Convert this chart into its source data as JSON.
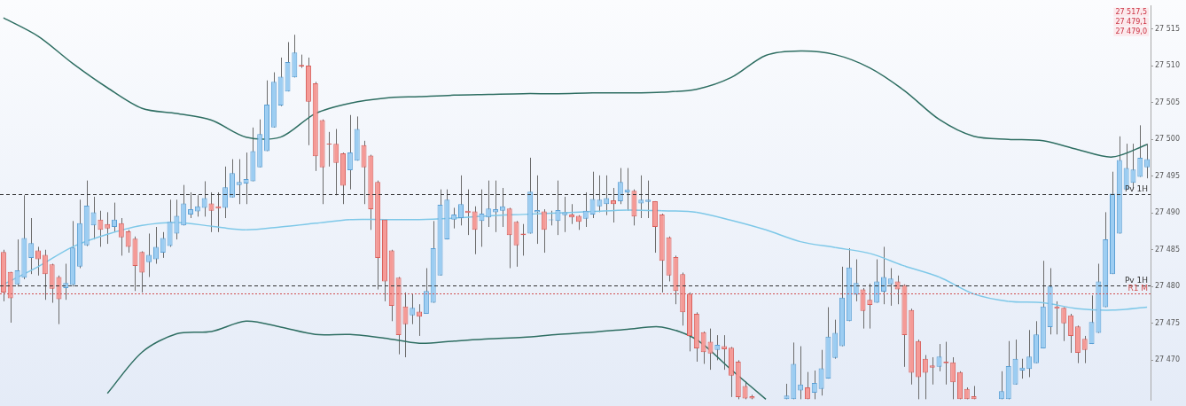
{
  "chart_data": {
    "type": "candlestick",
    "categories": [
      null,
      null,
      null,
      null,
      null,
      null,
      null,
      null,
      null,
      null,
      null,
      null,
      null,
      null,
      null,
      null,
      null,
      null,
      null,
      null,
      null,
      null,
      null,
      null,
      null,
      null,
      null,
      null,
      null,
      null,
      null,
      null,
      null,
      null,
      null,
      null,
      null,
      null,
      null,
      null,
      null,
      null,
      null,
      null,
      null,
      null,
      null,
      null,
      null,
      null,
      null,
      null,
      null,
      null,
      null,
      null,
      null,
      null,
      null,
      null,
      null,
      null,
      null,
      null,
      null,
      null,
      null,
      null,
      null,
      null,
      null,
      null,
      null,
      null,
      null,
      null,
      null,
      null,
      null,
      null,
      null,
      null,
      null,
      null,
      null,
      null,
      null,
      null,
      null,
      null,
      null,
      null,
      null,
      null,
      null,
      null,
      null,
      null,
      null,
      null,
      null,
      null,
      null,
      null,
      null,
      null,
      null,
      null,
      null,
      null,
      null,
      null,
      null,
      null,
      null,
      null,
      null,
      null,
      null,
      null,
      null,
      null,
      null,
      null,
      null,
      null,
      null,
      null,
      null,
      null,
      null,
      null,
      null,
      null,
      null,
      null,
      null,
      null,
      null,
      null,
      null,
      null,
      null,
      null,
      null,
      null,
      null,
      null,
      null,
      null,
      null,
      null,
      null,
      null,
      null,
      null,
      null,
      null,
      null,
      null,
      null,
      null,
      null,
      null,
      null,
      null
    ],
    "ohlc": [
      [
        27484.7,
        27485.0,
        27478.0,
        27479.2
      ],
      [
        27482.0,
        27482.0,
        27475.1,
        27478.4
      ],
      [
        27480.3,
        27486.4,
        27480.0,
        27482.2
      ],
      [
        27481.2,
        27492.4,
        27481.0,
        27486.6
      ],
      [
        27483.9,
        27489.3,
        27481.7,
        27485.9
      ],
      [
        27484.9,
        27485.4,
        27481.5,
        27483.7
      ],
      [
        27484.3,
        27485.0,
        27478.2,
        27481.7
      ],
      [
        27483.0,
        27483.1,
        27477.8,
        27479.7
      ],
      [
        27481.3,
        27481.5,
        27474.9,
        27478.3
      ],
      [
        27479.8,
        27483.1,
        27478.2,
        27480.5
      ],
      [
        27480.2,
        27488.9,
        27480.0,
        27485.3
      ],
      [
        27482.7,
        27491.8,
        27482.5,
        27488.6
      ],
      [
        27485.6,
        27494.4,
        27485.5,
        27491.0
      ],
      [
        27488.3,
        27492.2,
        27486.4,
        27490.1
      ],
      [
        27489.1,
        27490.3,
        27485.4,
        27487.7
      ],
      [
        27488.5,
        27490.1,
        27485.8,
        27487.9
      ],
      [
        27488.1,
        27491.4,
        27487.4,
        27489.1
      ],
      [
        27488.6,
        27489.3,
        27484.2,
        27486.7
      ],
      [
        27487.5,
        27487.7,
        27484.6,
        27485.4
      ],
      [
        27486.5,
        27486.8,
        27479.4,
        27482.8
      ],
      [
        27484.7,
        27484.8,
        27479.2,
        27481.9
      ],
      [
        27483.3,
        27487.2,
        27481.3,
        27484.3
      ],
      [
        27483.7,
        27488.1,
        27483.1,
        27485.4
      ],
      [
        27484.6,
        27487.4,
        27483.9,
        27486.6
      ],
      [
        27485.5,
        27491.8,
        27485.4,
        27488.8
      ],
      [
        27487.2,
        27491.8,
        27486.4,
        27489.6
      ],
      [
        27488.3,
        27493.8,
        27488.3,
        27491.3
      ],
      [
        27489.8,
        27492.8,
        27489.3,
        27490.5
      ],
      [
        27490.2,
        27492.4,
        27489.5,
        27490.9
      ],
      [
        27490.7,
        27494.3,
        27489.5,
        27492.0
      ],
      [
        27491.3,
        27492.8,
        27487.4,
        27490.3
      ],
      [
        27490.9,
        27492.8,
        27487.4,
        27490.6
      ],
      [
        27490.7,
        27496.3,
        27489.3,
        27493.5
      ],
      [
        27492.1,
        27497.3,
        27492.1,
        27495.4
      ],
      [
        27493.8,
        27497.3,
        27491.2,
        27494.2
      ],
      [
        27494.0,
        27498.2,
        27491.2,
        27494.6
      ],
      [
        27494.3,
        27501.6,
        27494.3,
        27498.4
      ],
      [
        27496.2,
        27502.7,
        27496.2,
        27500.7
      ],
      [
        27498.4,
        27508.0,
        27498.4,
        27504.7
      ],
      [
        27501.6,
        27509.1,
        27501.6,
        27507.8
      ],
      [
        27504.6,
        27511.1,
        27504.5,
        27508.5
      ],
      [
        27506.5,
        27513.2,
        27506.5,
        27510.5
      ],
      [
        27508.4,
        27514.2,
        27508.4,
        27511.8
      ],
      [
        27510.1,
        27511.5,
        27509.7,
        27509.9
      ],
      [
        27510.0,
        27511.1,
        27499.2,
        27505.1
      ],
      [
        27507.6,
        27507.8,
        27495.7,
        27497.7
      ],
      [
        27502.6,
        27502.7,
        27491.2,
        27496.2
      ],
      [
        27499.4,
        27501.0,
        27496.3,
        27499.3
      ],
      [
        27499.4,
        27501.4,
        27492.4,
        27496.8
      ],
      [
        27498.1,
        27498.2,
        27491.2,
        27493.7
      ],
      [
        27495.8,
        27503.3,
        27493.2,
        27498.2
      ],
      [
        27497.1,
        27503.1,
        27497.1,
        27501.4
      ],
      [
        27499.2,
        27499.8,
        27491.2,
        27496.2
      ],
      [
        27497.8,
        27497.9,
        27487.7,
        27490.5
      ],
      [
        27494.2,
        27494.4,
        27479.6,
        27483.9
      ],
      [
        27489.1,
        27489.1,
        27478.0,
        27480.7
      ],
      [
        27484.9,
        27485.0,
        27475.3,
        27477.4
      ],
      [
        27481.2,
        27481.3,
        27470.8,
        27473.4
      ],
      [
        27477.3,
        27479.2,
        27470.4,
        27474.9
      ],
      [
        27476.1,
        27479.0,
        27474.9,
        27477.1
      ],
      [
        27476.6,
        27477.6,
        27473.3,
        27475.9
      ],
      [
        27476.3,
        27482.5,
        27476.3,
        27479.4
      ],
      [
        27477.8,
        27488.9,
        27477.8,
        27485.2
      ],
      [
        27481.5,
        27493.2,
        27481.5,
        27491.1
      ],
      [
        27486.4,
        27493.2,
        27486.4,
        27491.8
      ],
      [
        27489.1,
        27490.7,
        27487.9,
        27489.8
      ],
      [
        27489.3,
        27495.1,
        27488.3,
        27491.2
      ],
      [
        27490.3,
        27493.2,
        27487.0,
        27490.0
      ],
      [
        27490.2,
        27490.9,
        27484.4,
        27487.7
      ],
      [
        27488.9,
        27493.2,
        27485.4,
        27489.9
      ],
      [
        27489.4,
        27494.4,
        27488.1,
        27490.6
      ],
      [
        27490.1,
        27494.4,
        27487.4,
        27490.5
      ],
      [
        27490.3,
        27493.4,
        27488.1,
        27490.9
      ],
      [
        27490.6,
        27490.7,
        27482.5,
        27487.0
      ],
      [
        27488.8,
        27488.9,
        27482.7,
        27485.6
      ],
      [
        27487.2,
        27488.5,
        27484.2,
        27487.0
      ],
      [
        27487.2,
        27497.5,
        27487.2,
        27492.9
      ],
      [
        27490.1,
        27495.1,
        27485.8,
        27490.4
      ],
      [
        27490.2,
        27490.5,
        27484.6,
        27487.7
      ],
      [
        27489.0,
        27490.3,
        27488.3,
        27489.1
      ],
      [
        27488.9,
        27494.4,
        27487.0,
        27490.4
      ],
      [
        27489.7,
        27492.2,
        27487.4,
        27490.1
      ],
      [
        27489.8,
        27491.2,
        27488.5,
        27489.4
      ],
      [
        27489.6,
        27489.7,
        27487.7,
        27488.8
      ],
      [
        27489.2,
        27492.8,
        27488.1,
        27490.3
      ],
      [
        27489.8,
        27495.6,
        27489.3,
        27491.9
      ],
      [
        27490.9,
        27495.1,
        27490.1,
        27491.8
      ],
      [
        27491.2,
        27495.1,
        27489.7,
        27492.0
      ],
      [
        27491.7,
        27493.4,
        27488.7,
        27491.2
      ],
      [
        27491.6,
        27496.1,
        27491.2,
        27494.2
      ],
      [
        27492.8,
        27496.1,
        27490.3,
        27493.2
      ],
      [
        27493.0,
        27493.2,
        27488.3,
        27489.5
      ],
      [
        27491.3,
        27495.1,
        27489.3,
        27491.8
      ],
      [
        27491.5,
        27494.4,
        27489.3,
        27491.8
      ],
      [
        27491.6,
        27491.6,
        27484.6,
        27488.1
      ],
      [
        27489.8,
        27489.9,
        27479.2,
        27483.5
      ],
      [
        27486.7,
        27486.8,
        27480.7,
        27481.5
      ],
      [
        27484.0,
        27484.2,
        27477.6,
        27479.4
      ],
      [
        27481.7,
        27481.9,
        27474.7,
        27476.5
      ],
      [
        27479.0,
        27479.2,
        27471.2,
        27473.3
      ],
      [
        27476.3,
        27476.5,
        27469.8,
        27471.6
      ],
      [
        27473.8,
        27473.9,
        27469.5,
        27471.1
      ],
      [
        27472.5,
        27474.3,
        27468.7,
        27470.9
      ],
      [
        27471.4,
        27473.4,
        27470.0,
        27472.1
      ],
      [
        27471.9,
        27473.4,
        27468.7,
        27471.5
      ],
      [
        27471.7,
        27471.8,
        27465.0,
        27467.9
      ],
      [
        27469.8,
        27470.0,
        27464.7,
        27465.0
      ],
      [
        27466.5,
        27467.1,
        27464.7,
        27464.8
      ],
      [
        27465.1,
        27465.3,
        27464.7,
        27464.8
      ],
      null,
      null,
      null,
      null,
      [
        27464.7,
        27466.8,
        27464.7,
        27465.2
      ],
      [
        27464.7,
        27472.4,
        27464.7,
        27469.5
      ],
      [
        27465.9,
        27471.9,
        27464.7,
        27466.7
      ],
      [
        27466.3,
        27468.4,
        27464.7,
        27464.7
      ],
      [
        27465.6,
        27468.6,
        27464.7,
        27466.9
      ],
      [
        27466.1,
        27471.4,
        27465.2,
        27468.9
      ],
      [
        27467.5,
        27477.2,
        27467.5,
        27473.2
      ],
      [
        27470.3,
        27475.5,
        27470.2,
        27473.7
      ],
      [
        27471.9,
        27482.7,
        27471.9,
        27478.5
      ],
      [
        27475.3,
        27485.2,
        27475.3,
        27482.6
      ],
      [
        27478.9,
        27483.7,
        27478.0,
        27480.5
      ],
      [
        27479.6,
        27479.8,
        27474.3,
        27476.7
      ],
      [
        27478.2,
        27480.4,
        27474.3,
        27477.5
      ],
      [
        27477.8,
        27483.7,
        27477.8,
        27480.7
      ],
      [
        27479.3,
        27485.4,
        27477.6,
        27481.3
      ],
      [
        27480.3,
        27482.5,
        27477.4,
        27481.1
      ],
      [
        27480.7,
        27481.5,
        27477.6,
        27479.6
      ],
      [
        27480.2,
        27480.3,
        27469.1,
        27473.4
      ],
      [
        27476.8,
        27477.0,
        27466.7,
        27468.3
      ],
      [
        27472.6,
        27472.8,
        27464.7,
        27467.7
      ],
      [
        27470.2,
        27470.7,
        27464.7,
        27468.3
      ],
      [
        27469.3,
        27470.4,
        27466.7,
        27469.0
      ],
      [
        27469.1,
        27472.2,
        27468.5,
        27470.5
      ],
      [
        27469.8,
        27472.5,
        27466.7,
        27469.6
      ],
      [
        27469.7,
        27470.4,
        27464.7,
        27467.0
      ],
      [
        27468.4,
        27468.5,
        27464.7,
        27464.7
      ],
      [
        27466.1,
        27466.3,
        27464.7,
        27464.7
      ],
      [
        27465.1,
        27466.5,
        27464.7,
        27464.7
      ],
      null,
      null,
      null,
      [
        27464.7,
        27468.5,
        27464.7,
        27465.8
      ],
      [
        27464.7,
        27472.6,
        27464.7,
        27469.2
      ],
      [
        27466.7,
        27472.8,
        27466.7,
        27470.2
      ],
      [
        27468.6,
        27470.2,
        27467.5,
        27469.0
      ],
      [
        27468.8,
        27474.1,
        27467.7,
        27470.5
      ],
      [
        27469.6,
        27475.3,
        27469.6,
        27473.5
      ],
      [
        27471.6,
        27483.5,
        27471.6,
        27477.3
      ],
      [
        27474.5,
        27482.5,
        27473.5,
        27480.0
      ],
      [
        27477.3,
        27478.0,
        27473.5,
        27477.0
      ],
      [
        27477.1,
        27477.2,
        27472.6,
        27475.0
      ],
      [
        27476.1,
        27476.3,
        27471.0,
        27473.3
      ],
      [
        27474.6,
        27474.7,
        27469.6,
        27471.0
      ],
      [
        27472.9,
        27473.3,
        27469.6,
        27471.4
      ],
      [
        27472.2,
        27478.8,
        27472.2,
        27475.2
      ],
      [
        27473.7,
        27483.1,
        27473.7,
        27480.7
      ],
      [
        27477.2,
        27490.1,
        27477.2,
        27486.4
      ],
      [
        27481.7,
        27495.6,
        27481.7,
        27492.6
      ],
      [
        27487.2,
        27500.4,
        27487.2,
        27497.2
      ],
      [
        27493.2,
        27499.4,
        27493.2,
        27496.1
      ],
      [
        27494.1,
        27499.4,
        27493.2,
        27495.9
      ],
      [
        27494.9,
        27501.9,
        27494.9,
        27497.5
      ],
      [
        27496.2,
        27499.4,
        27494.7,
        27497.3
      ]
    ],
    "series": [
      {
        "type": "line",
        "color": "#2e6e62",
        "values": [
          27516.5,
          null,
          null,
          null,
          null,
          27514.0,
          null,
          null,
          null,
          null,
          27510.3,
          null,
          null,
          null,
          null,
          27507.0,
          null,
          null,
          null,
          null,
          27504.2,
          null,
          null,
          null,
          null,
          27503.5,
          null,
          null,
          null,
          null,
          27502.6,
          null,
          null,
          null,
          null,
          27500.3,
          null,
          null,
          null,
          null,
          27500.3,
          null,
          null,
          null,
          null,
          27503.5,
          null,
          null,
          null,
          null,
          27504.9,
          null,
          null,
          null,
          null,
          27505.6,
          null,
          null,
          null,
          null,
          27505.8,
          null,
          null,
          null,
          null,
          27506.0,
          null,
          null,
          null,
          null,
          27506.1,
          null,
          null,
          null,
          null,
          27506.2,
          null,
          null,
          null,
          null,
          27506.2,
          null,
          null,
          null,
          null,
          27506.3,
          null,
          null,
          null,
          null,
          27506.3,
          null,
          null,
          null,
          null,
          27506.4,
          null,
          null,
          null,
          null,
          27506.8,
          null,
          null,
          null,
          null,
          27508.4,
          null,
          null,
          null,
          null,
          27511.4,
          null,
          null,
          null,
          null,
          27512.0,
          null,
          null,
          null,
          null,
          27511.5,
          null,
          null,
          null,
          null,
          27509.7,
          null,
          null,
          null,
          null,
          27506.6,
          null,
          null,
          null,
          null,
          27502.7,
          null,
          null,
          null,
          null,
          27500.4,
          null,
          null,
          null,
          null,
          27500.0,
          null,
          null,
          null,
          null,
          27499.8,
          null,
          null,
          null,
          null,
          27498.6,
          null,
          null,
          null,
          null,
          27497.6,
          null,
          null,
          null,
          null,
          27499.3
        ]
      },
      {
        "type": "line",
        "color": "#2e6e62",
        "values": [
          null,
          null,
          null,
          null,
          null,
          null,
          null,
          null,
          null,
          null,
          null,
          null,
          null,
          null,
          null,
          27465.5,
          null,
          null,
          null,
          null,
          27471.1,
          null,
          null,
          null,
          null,
          27473.6,
          null,
          null,
          null,
          null,
          27473.9,
          null,
          null,
          null,
          null,
          27475.3,
          null,
          null,
          null,
          null,
          27474.5,
          null,
          null,
          null,
          null,
          27473.5,
          null,
          null,
          null,
          null,
          27473.5,
          null,
          null,
          null,
          null,
          27473.0,
          null,
          null,
          null,
          null,
          27472.3,
          null,
          null,
          null,
          null,
          27472.6,
          null,
          null,
          null,
          null,
          27472.9,
          null,
          null,
          null,
          null,
          27473.1,
          null,
          null,
          null,
          null,
          27473.5,
          null,
          null,
          null,
          null,
          27473.8,
          null,
          null,
          null,
          null,
          27474.2,
          null,
          null,
          null,
          null,
          27474.5,
          null,
          null,
          null,
          null,
          27472.8,
          null,
          null,
          null,
          null,
          27468.7,
          null,
          null,
          null,
          null,
          27464.7,
          null,
          null,
          null,
          null,
          null,
          null,
          null,
          null,
          null,
          null,
          null,
          null,
          null,
          null,
          null,
          null,
          null,
          null,
          null,
          null,
          null,
          null,
          null,
          null,
          null,
          null,
          null,
          null,
          null,
          null,
          null,
          null,
          null,
          null,
          null,
          null,
          null,
          null,
          null,
          null,
          null,
          null,
          null,
          null,
          null,
          null,
          null,
          null,
          null,
          null,
          null,
          null,
          null,
          null,
          null
        ]
      },
      {
        "type": "line",
        "color": "#7ec8e8",
        "values": [
          27480.3,
          null,
          null,
          null,
          null,
          27482.7,
          null,
          null,
          null,
          null,
          27485.4,
          null,
          null,
          null,
          null,
          27487.1,
          null,
          null,
          null,
          null,
          27488.3,
          null,
          null,
          null,
          null,
          27488.7,
          null,
          null,
          null,
          null,
          27488.2,
          null,
          null,
          null,
          null,
          27487.7,
          null,
          null,
          null,
          null,
          27488.1,
          null,
          null,
          null,
          null,
          27488.6,
          null,
          null,
          null,
          null,
          27489.1,
          null,
          null,
          null,
          null,
          27489.1,
          null,
          null,
          null,
          null,
          27489.1,
          null,
          null,
          null,
          null,
          27489.3,
          null,
          null,
          null,
          null,
          27489.6,
          null,
          null,
          null,
          null,
          27489.8,
          null,
          null,
          null,
          null,
          27490.0,
          null,
          null,
          null,
          null,
          27490.2,
          null,
          null,
          null,
          null,
          27490.4,
          null,
          null,
          null,
          null,
          27490.3,
          null,
          null,
          null,
          null,
          27490.1,
          null,
          null,
          null,
          null,
          27489.0,
          null,
          null,
          null,
          null,
          27487.7,
          null,
          null,
          null,
          null,
          27486.1,
          null,
          null,
          null,
          null,
          27485.3,
          null,
          null,
          null,
          null,
          27484.5,
          null,
          null,
          null,
          null,
          27482.8,
          null,
          null,
          null,
          null,
          27481.3,
          null,
          null,
          null,
          null,
          27479.0,
          null,
          null,
          null,
          null,
          27478.0,
          null,
          null,
          null,
          null,
          27477.8,
          null,
          null,
          null,
          null,
          27477.0,
          null,
          null,
          null,
          null,
          27476.8,
          null,
          null,
          null,
          null,
          27477.2
        ],
        "colors": [
          "#7ec8e8",
          null,
          null,
          null,
          null,
          "#7ec8e8",
          null,
          null,
          null,
          null,
          "#7ec8e8",
          null,
          null,
          null,
          null,
          "#7ec8e8",
          null,
          null,
          null,
          null,
          "#7ec8e8",
          null,
          null,
          null,
          null,
          "#7ec8e8",
          null,
          null,
          null,
          null,
          "#e88080",
          null,
          null,
          null,
          null,
          "#e88080",
          null,
          null,
          null,
          null,
          "#7ec8e8",
          null,
          null,
          null,
          null,
          "#7ec8e8",
          null,
          null,
          null,
          null,
          "#e88080",
          null,
          null,
          null,
          null,
          "#e88080",
          null,
          null,
          null,
          null,
          "#7ec8e8",
          null,
          null,
          null,
          null,
          "#7ec8e8",
          null,
          null,
          null,
          null,
          "#7ec8e8",
          null,
          null,
          null,
          null,
          "#7ec8e8",
          null,
          null,
          null,
          null,
          "#7ec8e8",
          null,
          null,
          null,
          null,
          "#7ec8e8",
          null,
          null,
          null,
          null,
          "#e88080",
          null,
          null,
          null,
          null,
          "#e88080",
          null,
          null,
          null,
          null,
          "#e88080",
          null,
          null,
          null,
          null,
          "#e88080",
          null,
          null,
          null,
          null,
          "#e88080",
          null,
          null,
          null,
          null,
          "#e88080",
          null,
          null,
          null,
          null,
          "#e88080",
          null,
          null,
          null,
          null,
          "#e88080",
          null,
          null,
          null,
          null,
          "#e88080",
          null,
          null,
          null,
          null,
          "#e88080",
          null,
          null,
          null,
          null,
          "#e88080",
          null,
          null,
          null,
          null,
          "#e88080",
          null,
          null,
          null,
          null,
          "#e88080",
          null,
          null,
          null,
          null,
          "#7ec8e8",
          null,
          null,
          null,
          null,
          "#7ec8e8",
          null,
          null,
          null,
          null,
          null
        ]
      }
    ],
    "ylim": [
      27464.6,
      27518.1
    ],
    "yticks": [
      {
        "value": 27470,
        "label": "27 470"
      },
      {
        "value": 27475,
        "label": "27 475"
      },
      {
        "value": 27480,
        "label": "27 480"
      },
      {
        "value": 27485,
        "label": "27 485"
      },
      {
        "value": 27490,
        "label": "27 490"
      },
      {
        "value": 27495,
        "label": "27 495"
      },
      {
        "value": 27500,
        "label": "27 500"
      },
      {
        "value": 27505,
        "label": "27 505"
      },
      {
        "value": 27510,
        "label": "27 510"
      },
      {
        "value": 27515,
        "label": "27 515"
      }
    ],
    "ref_lines": [
      {
        "axis": "y",
        "value": 27480.1,
        "label": "Pv 1H",
        "color": "#333333",
        "line_style": "dashed"
      },
      {
        "axis": "y",
        "value": 27492.6,
        "label": "Pv 1H",
        "color": "#333333",
        "line_style": "dashed"
      },
      {
        "axis": "y",
        "value": 27479.1,
        "label": "R1 M",
        "color": "#d05050",
        "line_style": "dotted"
      }
    ],
    "annotations": [
      "27 517,5",
      "27 479,1",
      "27 479,0"
    ],
    "tick_labels": "y",
    "grid": false,
    "legend": false
  }
}
